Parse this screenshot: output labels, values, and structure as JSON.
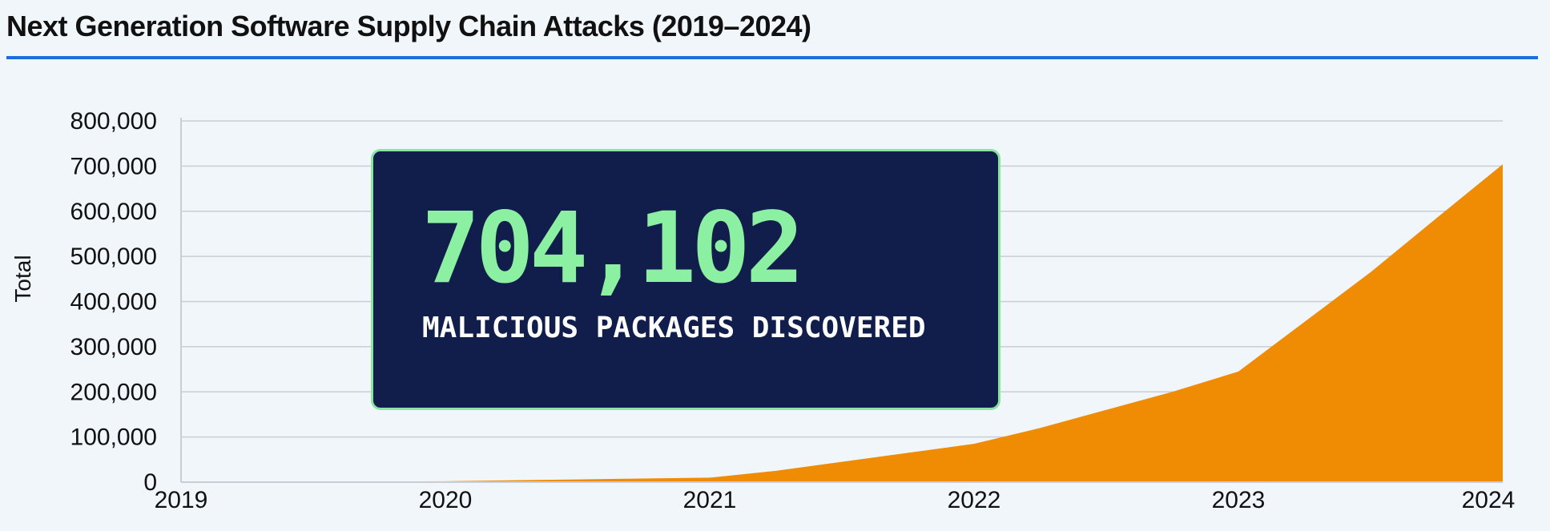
{
  "page_title": "Next Generation Software Supply Chain Attacks (2019–2024)",
  "colors": {
    "area": "#f08b04",
    "grid": "#c9ced6",
    "title_rule": "#1a6fdc",
    "callout_bg": "#111d4a",
    "callout_border": "#8be3a1",
    "callout_number": "#8cf0a2"
  },
  "callout": {
    "value": "704,102",
    "caption": "MALICIOUS PACKAGES DISCOVERED"
  },
  "chart_data": {
    "type": "area",
    "ylabel": "Total",
    "xlabel": "",
    "xlim": [
      2019,
      2024
    ],
    "ylim": [
      0,
      800000
    ],
    "x_ticks": [
      "2019",
      "2020",
      "2021",
      "2022",
      "2023",
      "2024"
    ],
    "y_ticks": [
      "0",
      "100,000",
      "200,000",
      "300,000",
      "400,000",
      "500,000",
      "600,000",
      "700,000",
      "800,000"
    ],
    "grid": true,
    "series": [
      {
        "x": [
          2019,
          2019.5,
          2020,
          2020.5,
          2021,
          2021.25,
          2021.5,
          2021.75,
          2022,
          2022.25,
          2022.5,
          2022.75,
          2023,
          2023.25,
          2023.5,
          2023.75,
          2024
        ],
        "y": [
          0,
          500,
          2000,
          6000,
          10000,
          25000,
          45000,
          65000,
          85000,
          120000,
          160000,
          200000,
          245000,
          355000,
          465000,
          585000,
          704102
        ]
      }
    ]
  }
}
